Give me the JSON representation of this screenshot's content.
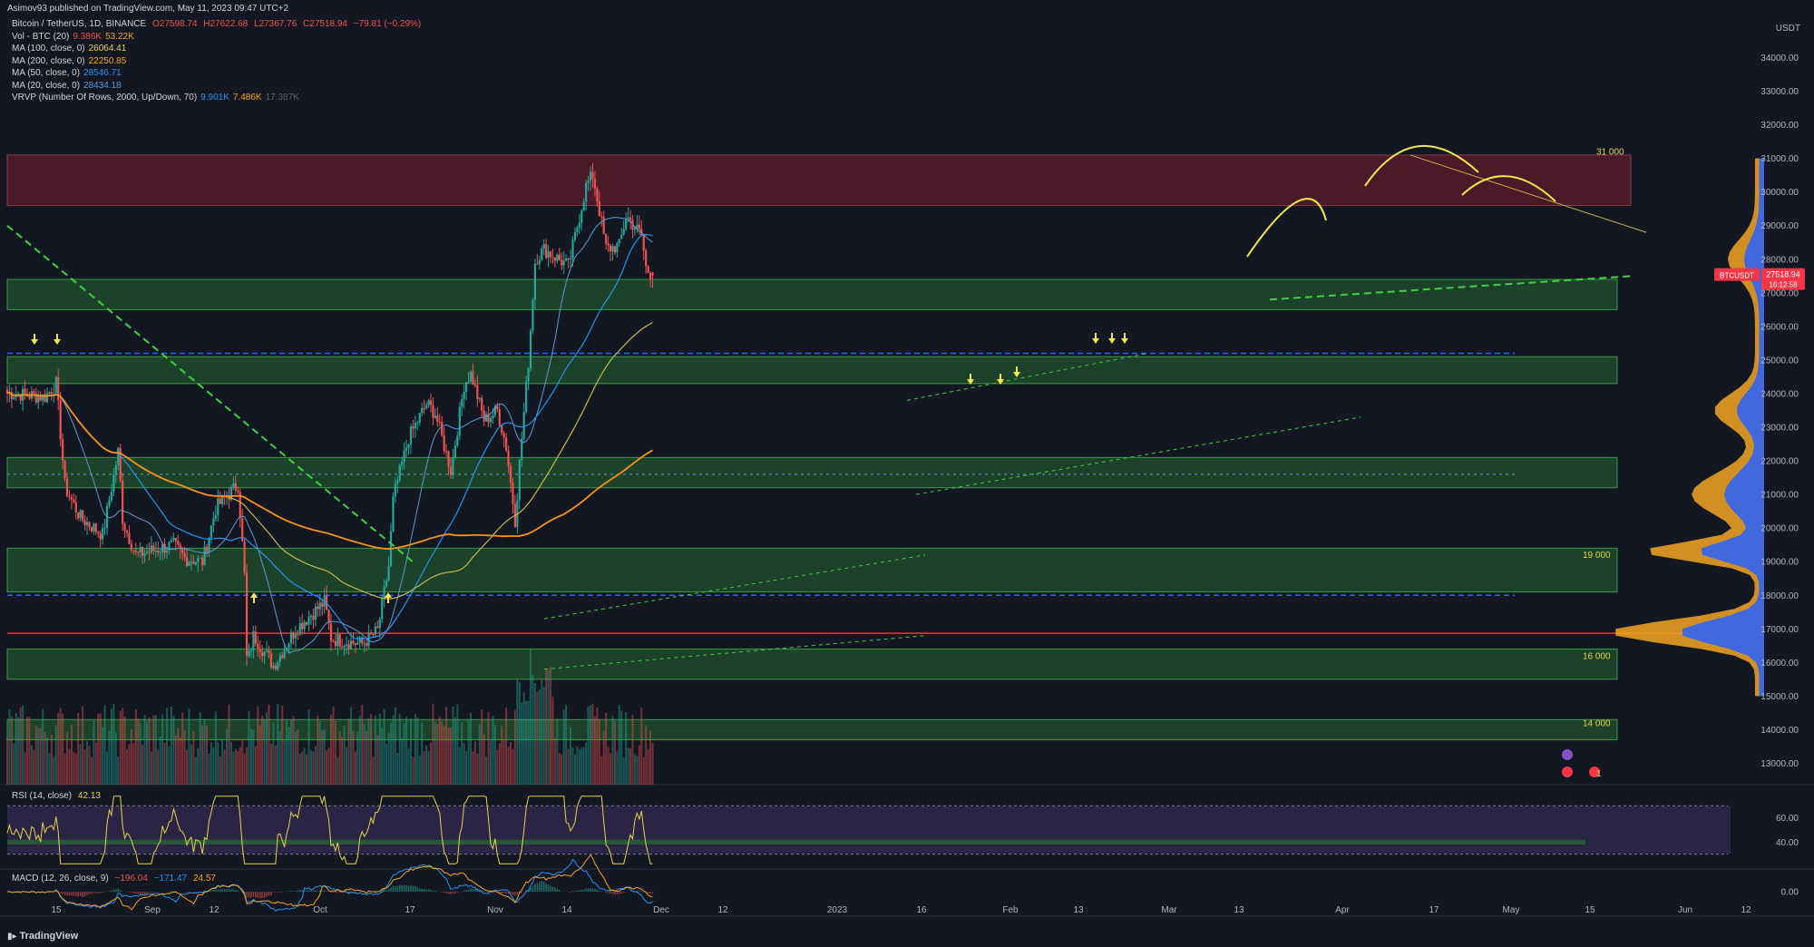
{
  "publish_line": "Asimov93 published on TradingView.com, May 11, 2023 09:47 UTC+2",
  "ohlc_header": {
    "label": "Bitcoin / TetherUS, 1D, BINANCE",
    "o": "O27598.74",
    "h": "H27622.68",
    "l": "L27367.76",
    "c": "C27518.94",
    "chg": "−79.81 (−0.29%)"
  },
  "indicators": [
    {
      "label": "Vol - BTC (20)",
      "v1": "9.386K",
      "v2": "53.22K",
      "c1": "#ef5350",
      "c2": "#f5a623"
    },
    {
      "label": "MA (100, close, 0)",
      "v1": "26064.41",
      "v2": "",
      "c1": "#e8d44d",
      "c2": ""
    },
    {
      "label": "MA (200, close, 0)",
      "v1": "22250.85",
      "v2": "",
      "c1": "#f5a623",
      "c2": ""
    },
    {
      "label": "MA (50, close, 0)",
      "v1": "28546.71",
      "v2": "",
      "c1": "#2196f3",
      "c2": ""
    },
    {
      "label": "MA (20, close, 0)",
      "v1": "28434.18",
      "v2": "",
      "c1": "#5b9bd5",
      "c2": ""
    },
    {
      "label": "VRVP (Number Of Rows, 2000, Up/Down, 70)",
      "v1": "9.901K",
      "v2": "7.486K",
      "v3": "17.387K",
      "c1": "#2196f3",
      "c2": "#f5a623"
    }
  ],
  "rsi_title": "RSI (14, close)",
  "rsi_value": "42.13",
  "macd_title": "MACD (12, 26, close, 9)",
  "macd_v1": "−196.04",
  "macd_v2": "−171.47",
  "macd_v3": "24.57",
  "currency": "USDT",
  "price_tag": "27518.94",
  "price_sym": "BTCUSDT",
  "price_timer": "16:12:58",
  "footer_brand": "TradingView",
  "colors": {
    "up": "#26a69a",
    "down": "#ef5350",
    "ma20": "#5b9bd5",
    "ma50": "#2196f3",
    "ma100": "#c9b84a",
    "ma200": "#f7931a"
  },
  "chart_data": {
    "type": "candlestick",
    "y_axis_labels": [
      "34000.00",
      "33000.00",
      "32000.00",
      "31000.00",
      "30000.00",
      "29000.00",
      "28000.00",
      "27000.00",
      "26000.00",
      "25000.00",
      "24000.00",
      "23000.00",
      "22000.00",
      "21000.00",
      "20000.00",
      "19000.00",
      "18000.00",
      "17000.00",
      "16000.00",
      "15000.00",
      "14000.00",
      "13000.00"
    ],
    "x_axis_labels": [
      "15",
      "Sep",
      "12",
      "Oct",
      "17",
      "Nov",
      "14",
      "Dec",
      "12",
      "2023",
      "16",
      "Feb",
      "13",
      "Mar",
      "13",
      "Apr",
      "17",
      "May",
      "15",
      "Jun",
      "12"
    ],
    "rsi_axis_labels": [
      "60.00",
      "40.00"
    ],
    "macd_axis_labels": [
      "0.00"
    ],
    "level_labels": [
      "31 000",
      "19 000",
      "16 000",
      "14 000",
      "1"
    ],
    "zones": [
      {
        "low": 29600,
        "high": 31100,
        "kind": "resistance"
      },
      {
        "low": 26500,
        "high": 27400,
        "kind": "support"
      },
      {
        "low": 24300,
        "high": 25100,
        "kind": "support"
      },
      {
        "low": 21200,
        "high": 22100,
        "kind": "support"
      },
      {
        "low": 18100,
        "high": 19400,
        "kind": "support"
      },
      {
        "low": 15500,
        "high": 16400,
        "kind": "support"
      },
      {
        "low": 13700,
        "high": 14300,
        "kind": "support"
      }
    ],
    "close_series": [
      {
        "date": "2022-08-10",
        "close": 23900
      },
      {
        "date": "2022-08-15",
        "close": 24300
      },
      {
        "date": "2022-08-19",
        "close": 21200
      },
      {
        "date": "2022-08-26",
        "close": 20300
      },
      {
        "date": "2022-09-05",
        "close": 19800
      },
      {
        "date": "2022-09-12",
        "close": 22300
      },
      {
        "date": "2022-09-14",
        "close": 20200
      },
      {
        "date": "2022-09-20",
        "close": 19200
      },
      {
        "date": "2022-10-01",
        "close": 19400
      },
      {
        "date": "2022-10-07",
        "close": 19500
      },
      {
        "date": "2022-10-12",
        "close": 19100
      },
      {
        "date": "2022-10-20",
        "close": 19000
      },
      {
        "date": "2022-10-26",
        "close": 20600
      },
      {
        "date": "2022-11-05",
        "close": 21300
      },
      {
        "date": "2022-11-08",
        "close": 18500
      },
      {
        "date": "2022-11-09",
        "close": 15900
      },
      {
        "date": "2022-11-12",
        "close": 16800
      },
      {
        "date": "2022-11-21",
        "close": 15900
      },
      {
        "date": "2022-12-01",
        "close": 17000
      },
      {
        "date": "2022-12-14",
        "close": 17800
      },
      {
        "date": "2022-12-17",
        "close": 16700
      },
      {
        "date": "2022-12-31",
        "close": 16550
      },
      {
        "date": "2023-01-07",
        "close": 16950
      },
      {
        "date": "2023-01-12",
        "close": 18900
      },
      {
        "date": "2023-01-14",
        "close": 20900
      },
      {
        "date": "2023-01-21",
        "close": 22700
      },
      {
        "date": "2023-01-29",
        "close": 23700
      },
      {
        "date": "2023-02-02",
        "close": 23400
      },
      {
        "date": "2023-02-09",
        "close": 21700
      },
      {
        "date": "2023-02-15",
        "close": 24300
      },
      {
        "date": "2023-02-18",
        "close": 24600
      },
      {
        "date": "2023-02-24",
        "close": 23200
      },
      {
        "date": "2023-03-02",
        "close": 23500
      },
      {
        "date": "2023-03-06",
        "close": 22400
      },
      {
        "date": "2023-03-10",
        "close": 20200
      },
      {
        "date": "2023-03-12",
        "close": 22000
      },
      {
        "date": "2023-03-16",
        "close": 25000
      },
      {
        "date": "2023-03-19",
        "close": 28000
      },
      {
        "date": "2023-03-23",
        "close": 28300
      },
      {
        "date": "2023-04-03",
        "close": 27800
      },
      {
        "date": "2023-04-11",
        "close": 30200
      },
      {
        "date": "2023-04-14",
        "close": 30500
      },
      {
        "date": "2023-04-20",
        "close": 28300
      },
      {
        "date": "2023-04-26",
        "close": 28400
      },
      {
        "date": "2023-04-29",
        "close": 29300
      },
      {
        "date": "2023-05-06",
        "close": 28700
      },
      {
        "date": "2023-05-08",
        "close": 27700
      },
      {
        "date": "2023-05-11",
        "close": 27519
      }
    ]
  }
}
